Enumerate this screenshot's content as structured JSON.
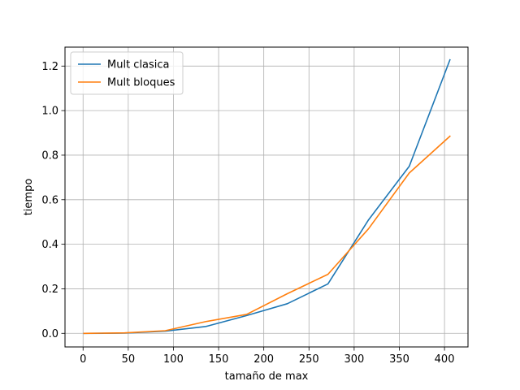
{
  "chart_data": {
    "type": "line",
    "title": "",
    "xlabel": "tamaño de max",
    "ylabel": "tiempo",
    "xlim": [
      -20,
      426
    ],
    "ylim": [
      -0.061,
      1.285
    ],
    "xticks": [
      0,
      50,
      100,
      150,
      200,
      250,
      300,
      350,
      400
    ],
    "yticks": [
      0.0,
      0.2,
      0.4,
      0.6,
      0.8,
      1.0,
      1.2
    ],
    "xtick_labels": [
      "0",
      "50",
      "100",
      "150",
      "200",
      "250",
      "300",
      "350",
      "400"
    ],
    "ytick_labels": [
      "0.0",
      "0.2",
      "0.4",
      "0.6",
      "0.8",
      "1.0",
      "1.2"
    ],
    "grid": true,
    "legend_position": "top-left",
    "series": [
      {
        "name": "Mult clasica",
        "color": "#1f77b4",
        "x": [
          1,
          46,
          91,
          136,
          181,
          226,
          271,
          316,
          361,
          406
        ],
        "y": [
          0.0,
          0.001,
          0.01,
          0.031,
          0.08,
          0.133,
          0.222,
          0.51,
          0.75,
          1.228
        ]
      },
      {
        "name": "Mult bloques",
        "color": "#ff7f0e",
        "x": [
          1,
          46,
          91,
          136,
          181,
          226,
          271,
          316,
          361,
          406
        ],
        "y": [
          0.0,
          0.002,
          0.012,
          0.053,
          0.085,
          0.178,
          0.265,
          0.47,
          0.72,
          0.885
        ]
      }
    ]
  }
}
